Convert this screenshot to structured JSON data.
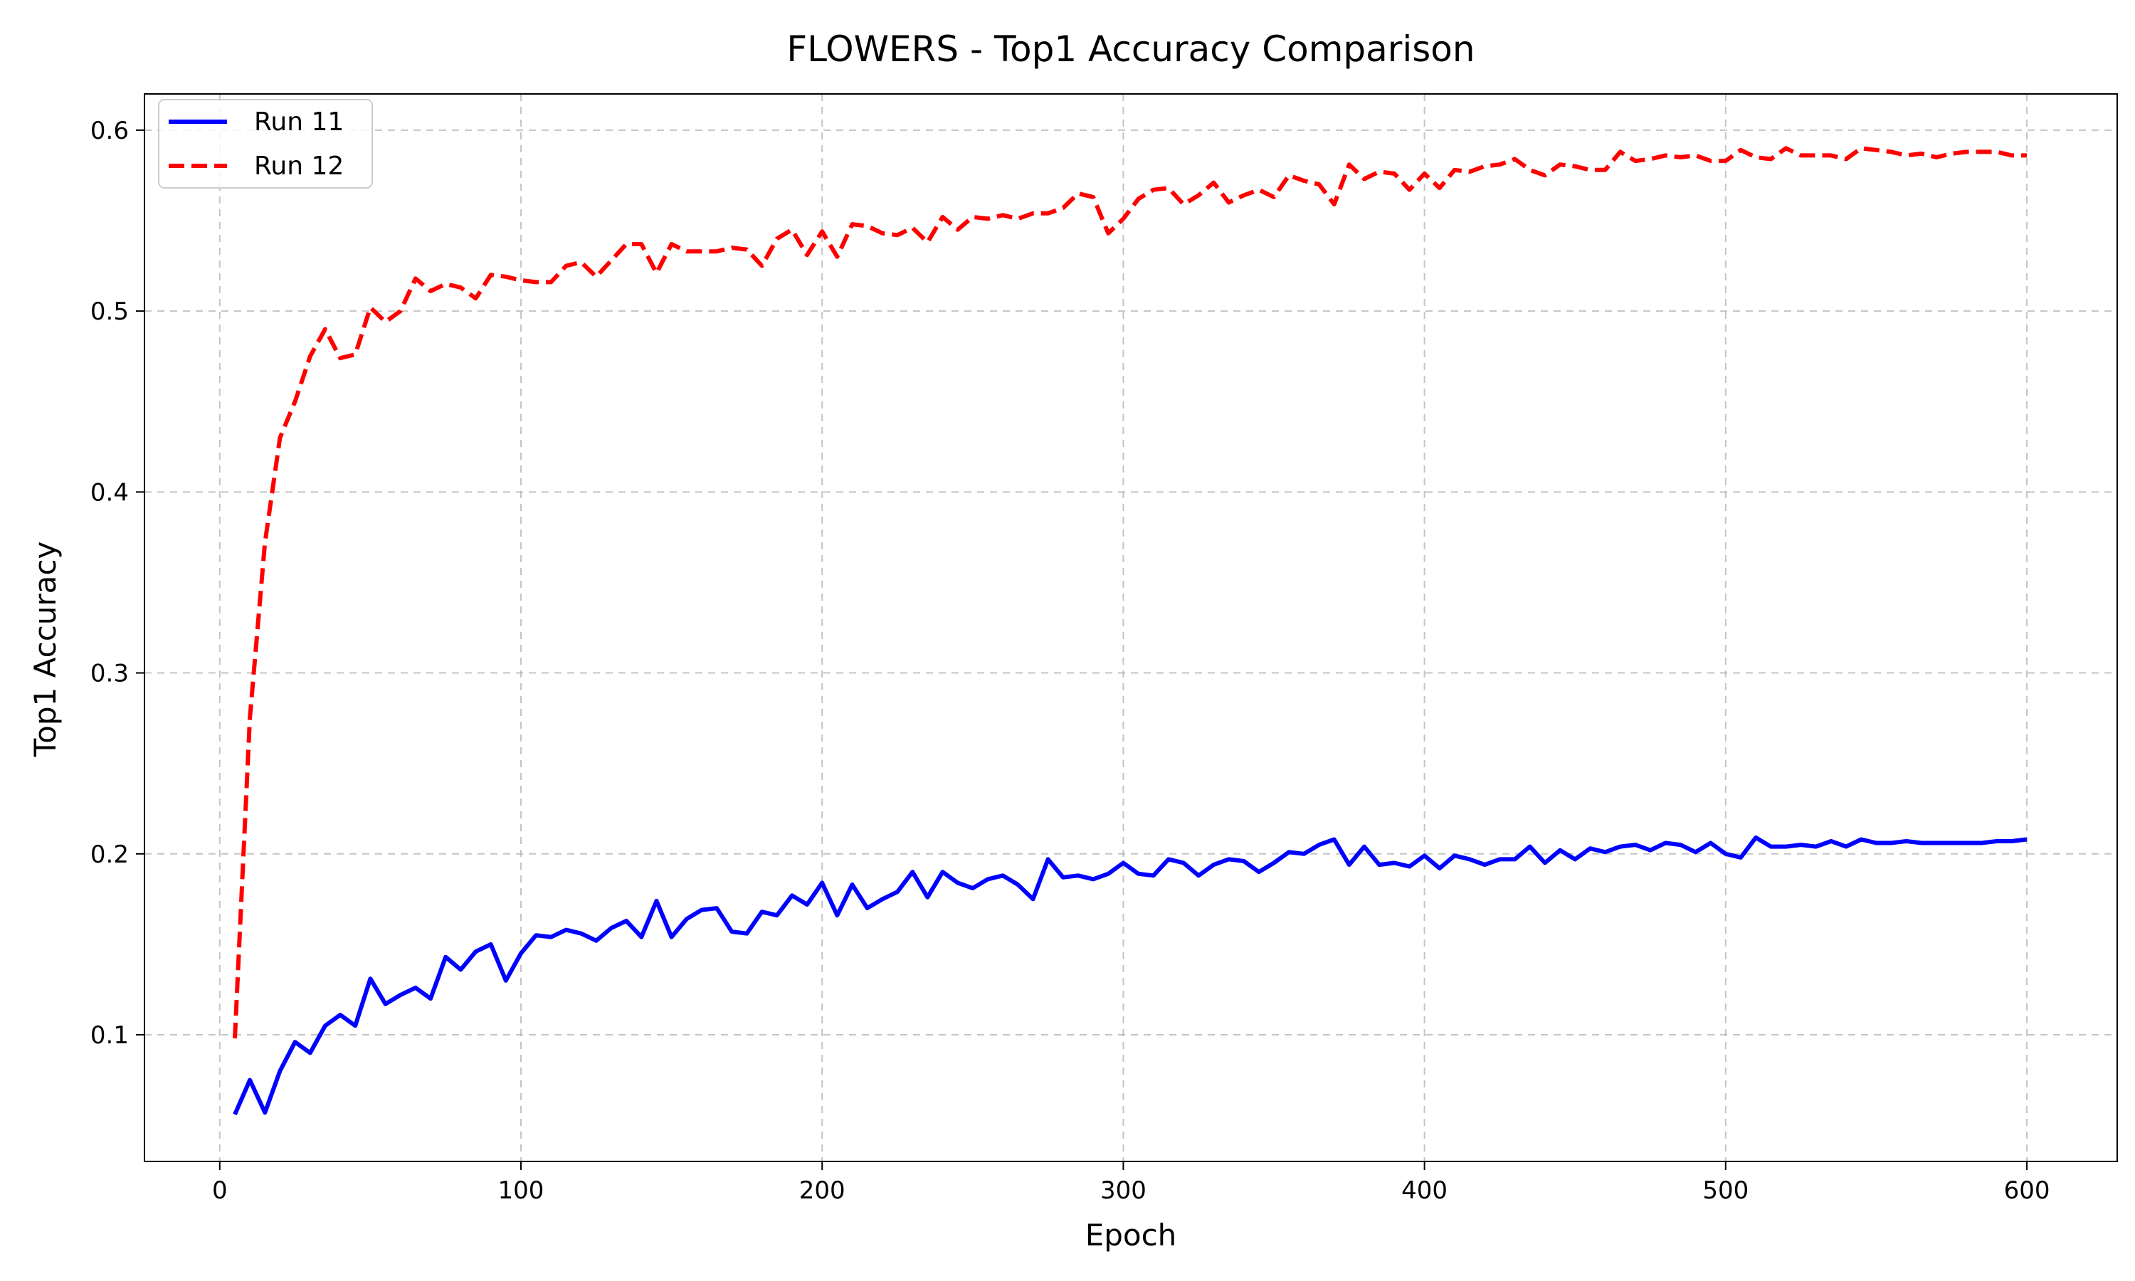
{
  "chart_data": {
    "type": "line",
    "title": "FLOWERS - Top1 Accuracy Comparison",
    "xlabel": "Epoch",
    "ylabel": "Top1 Accuracy",
    "xlim": [
      -25,
      630
    ],
    "ylim": [
      0.03,
      0.62
    ],
    "xticks": [
      0,
      100,
      200,
      300,
      400,
      500,
      600
    ],
    "yticks": [
      0.1,
      0.2,
      0.3,
      0.4,
      0.5,
      0.6
    ],
    "xtick_labels": [
      "0",
      "100",
      "200",
      "300",
      "400",
      "500",
      "600"
    ],
    "ytick_labels": [
      "0.1",
      "0.2",
      "0.3",
      "0.4",
      "0.5",
      "0.6"
    ],
    "grid": true,
    "legend_position": "top-left",
    "series": [
      {
        "name": "Run 11",
        "color": "#0000ff",
        "style": "solid",
        "x": [
          5,
          10,
          15,
          20,
          25,
          30,
          35,
          40,
          45,
          50,
          55,
          60,
          65,
          70,
          75,
          80,
          85,
          90,
          95,
          100,
          105,
          110,
          115,
          120,
          125,
          130,
          135,
          140,
          145,
          150,
          155,
          160,
          165,
          170,
          175,
          180,
          185,
          190,
          195,
          200,
          205,
          210,
          215,
          220,
          225,
          230,
          235,
          240,
          245,
          250,
          255,
          260,
          265,
          270,
          275,
          280,
          285,
          290,
          295,
          300,
          305,
          310,
          315,
          320,
          325,
          330,
          335,
          340,
          345,
          350,
          355,
          360,
          365,
          370,
          375,
          380,
          385,
          390,
          395,
          400,
          405,
          410,
          415,
          420,
          425,
          430,
          435,
          440,
          445,
          450,
          455,
          460,
          465,
          470,
          475,
          480,
          485,
          490,
          495,
          500,
          505,
          510,
          515,
          520,
          525,
          530,
          535,
          540,
          545,
          550,
          555,
          560,
          565,
          570,
          575,
          580,
          585,
          590,
          595,
          600
        ],
        "y": [
          0.056,
          0.075,
          0.057,
          0.08,
          0.096,
          0.09,
          0.105,
          0.111,
          0.105,
          0.131,
          0.117,
          0.122,
          0.126,
          0.12,
          0.143,
          0.136,
          0.146,
          0.15,
          0.13,
          0.145,
          0.155,
          0.154,
          0.158,
          0.156,
          0.152,
          0.159,
          0.163,
          0.154,
          0.174,
          0.154,
          0.164,
          0.169,
          0.17,
          0.157,
          0.156,
          0.168,
          0.166,
          0.177,
          0.172,
          0.184,
          0.166,
          0.183,
          0.17,
          0.175,
          0.179,
          0.19,
          0.176,
          0.19,
          0.184,
          0.181,
          0.186,
          0.188,
          0.183,
          0.175,
          0.197,
          0.187,
          0.188,
          0.186,
          0.189,
          0.195,
          0.189,
          0.188,
          0.197,
          0.195,
          0.188,
          0.194,
          0.197,
          0.196,
          0.19,
          0.195,
          0.201,
          0.2,
          0.205,
          0.208,
          0.194,
          0.204,
          0.194,
          0.195,
          0.193,
          0.199,
          0.192,
          0.199,
          0.197,
          0.194,
          0.197,
          0.197,
          0.204,
          0.195,
          0.202,
          0.197,
          0.203,
          0.201,
          0.204,
          0.205,
          0.202,
          0.206,
          0.205,
          0.201,
          0.206,
          0.2,
          0.198,
          0.209,
          0.204,
          0.204,
          0.205,
          0.204,
          0.207,
          0.204,
          0.208,
          0.206,
          0.206,
          0.207,
          0.206,
          0.206,
          0.206,
          0.206,
          0.206,
          0.207,
          0.207,
          0.208
        ]
      },
      {
        "name": "Run 12",
        "color": "#ff0000",
        "style": "dashed",
        "x": [
          5,
          10,
          15,
          20,
          25,
          30,
          35,
          40,
          45,
          50,
          55,
          60,
          65,
          70,
          75,
          80,
          85,
          90,
          95,
          100,
          105,
          110,
          115,
          120,
          125,
          130,
          135,
          140,
          145,
          150,
          155,
          160,
          165,
          170,
          175,
          180,
          185,
          190,
          195,
          200,
          205,
          210,
          215,
          220,
          225,
          230,
          235,
          240,
          245,
          250,
          255,
          260,
          265,
          270,
          275,
          280,
          285,
          290,
          295,
          300,
          305,
          310,
          315,
          320,
          325,
          330,
          335,
          340,
          345,
          350,
          355,
          360,
          365,
          370,
          375,
          380,
          385,
          390,
          395,
          400,
          405,
          410,
          415,
          420,
          425,
          430,
          435,
          440,
          445,
          450,
          455,
          460,
          465,
          470,
          475,
          480,
          485,
          490,
          495,
          500,
          505,
          510,
          515,
          520,
          525,
          530,
          535,
          540,
          545,
          550,
          555,
          560,
          565,
          570,
          575,
          580,
          585,
          590,
          595,
          600
        ],
        "y": [
          0.098,
          0.275,
          0.372,
          0.43,
          0.45,
          0.475,
          0.49,
          0.474,
          0.476,
          0.502,
          0.494,
          0.5,
          0.518,
          0.511,
          0.515,
          0.513,
          0.507,
          0.52,
          0.519,
          0.517,
          0.516,
          0.516,
          0.525,
          0.527,
          0.519,
          0.528,
          0.537,
          0.537,
          0.521,
          0.537,
          0.533,
          0.533,
          0.533,
          0.535,
          0.534,
          0.525,
          0.54,
          0.545,
          0.531,
          0.544,
          0.53,
          0.548,
          0.547,
          0.543,
          0.542,
          0.546,
          0.538,
          0.552,
          0.545,
          0.552,
          0.551,
          0.553,
          0.551,
          0.554,
          0.554,
          0.557,
          0.565,
          0.563,
          0.543,
          0.551,
          0.562,
          0.567,
          0.568,
          0.559,
          0.564,
          0.571,
          0.56,
          0.564,
          0.567,
          0.563,
          0.575,
          0.572,
          0.57,
          0.559,
          0.581,
          0.573,
          0.577,
          0.576,
          0.567,
          0.576,
          0.568,
          0.578,
          0.577,
          0.58,
          0.581,
          0.584,
          0.578,
          0.575,
          0.581,
          0.58,
          0.578,
          0.578,
          0.588,
          0.583,
          0.584,
          0.586,
          0.585,
          0.586,
          0.583,
          0.583,
          0.589,
          0.585,
          0.584,
          0.59,
          0.586,
          0.586,
          0.586,
          0.584,
          0.59,
          0.589,
          0.588,
          0.586,
          0.587,
          0.585,
          0.587,
          0.588,
          0.588,
          0.588,
          0.586,
          0.586
        ]
      }
    ]
  }
}
